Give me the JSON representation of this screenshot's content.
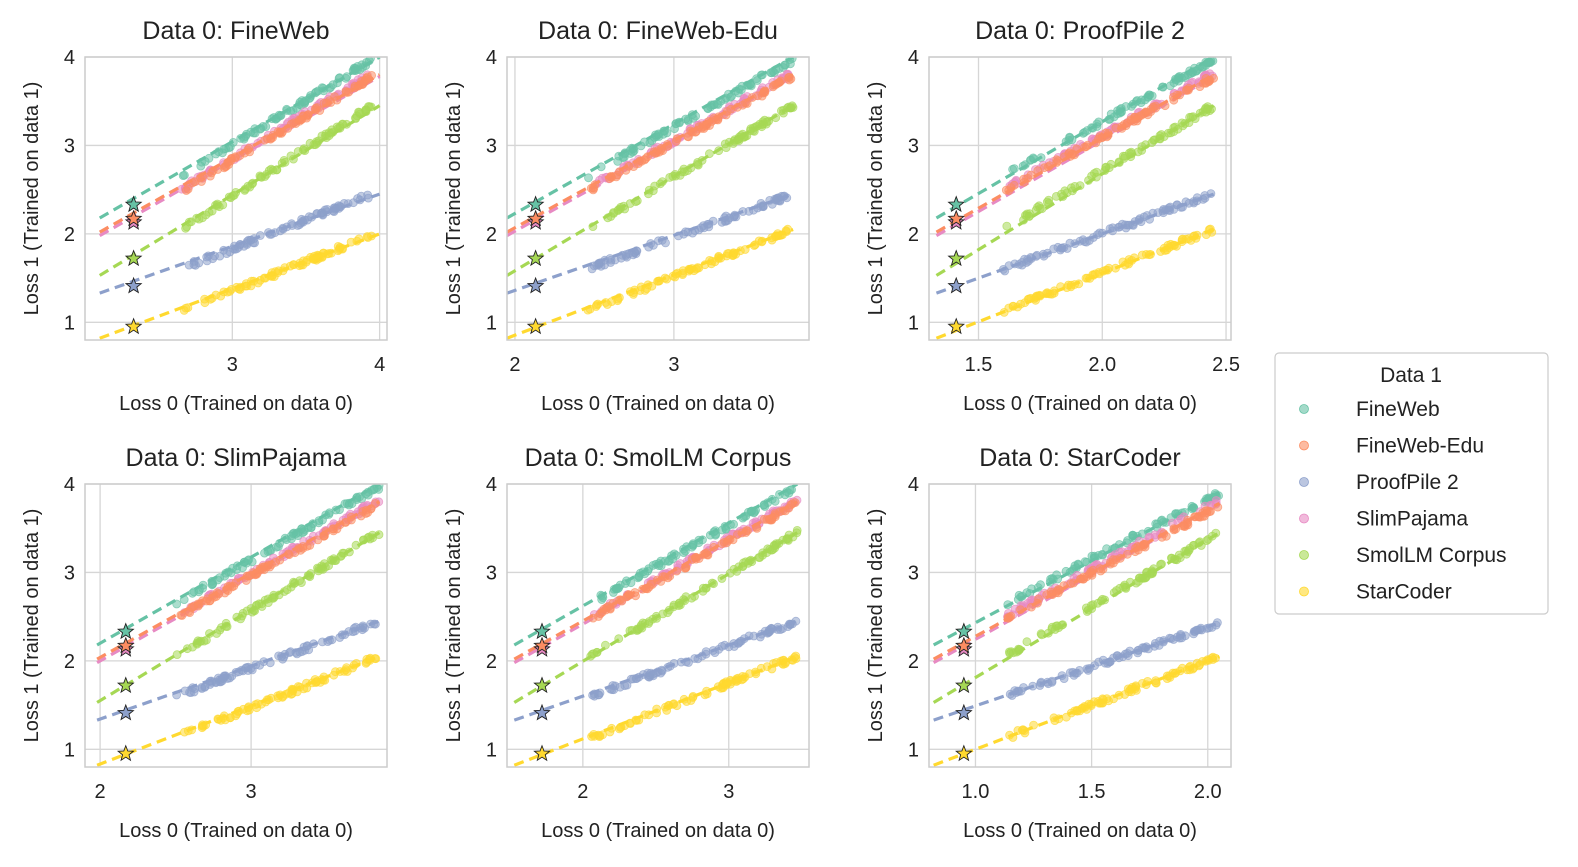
{
  "figure": {
    "legend_title": "Data 1"
  },
  "colors": {
    "FineWeb": "#66c2a5",
    "FineWeb-Edu": "#fc8d62",
    "ProofPile 2": "#8da0cb",
    "SlimPajama": "#e78ac3",
    "SmolLM Corpus": "#a6d854",
    "StarCoder": "#ffd92f"
  },
  "chart_data": [
    {
      "type": "scatter",
      "title": "Data 0: FineWeb",
      "xlabel": "Loss 0 (Trained on data 0)",
      "ylabel": "Loss 1 (Trained on data 1)",
      "xlim": [
        2.0,
        4.05
      ],
      "ylim": [
        0.8,
        4.0
      ],
      "xticks": [
        3,
        4
      ],
      "yticks": [
        1,
        2,
        3,
        4
      ],
      "line_x": [
        2.1,
        4.0
      ],
      "scatter_x": [
        2.65,
        3.95
      ],
      "star_x": 2.33,
      "series": [
        {
          "name": "FineWeb",
          "line_y": [
            2.18,
            4.0
          ],
          "scatter_y": [
            2.65,
            3.97
          ],
          "star_y": 2.33
        },
        {
          "name": "FineWeb-Edu",
          "line_y": [
            2.02,
            3.8
          ],
          "scatter_y": [
            2.48,
            3.78
          ],
          "star_y": 2.17
        },
        {
          "name": "ProofPile 2",
          "line_y": [
            1.33,
            2.45
          ],
          "scatter_y": [
            1.6,
            2.45
          ],
          "star_y": 1.41
        },
        {
          "name": "SlimPajama",
          "line_y": [
            1.98,
            3.78
          ],
          "scatter_y": [
            2.5,
            3.82
          ],
          "star_y": 2.13
        },
        {
          "name": "SmolLM Corpus",
          "line_y": [
            1.53,
            3.45
          ],
          "scatter_y": [
            2.05,
            3.45
          ],
          "star_y": 1.72
        },
        {
          "name": "StarCoder",
          "line_y": [
            0.82,
            2.0
          ],
          "scatter_y": [
            1.13,
            1.98
          ],
          "star_y": 0.95
        }
      ]
    },
    {
      "type": "scatter",
      "title": "Data 0: FineWeb-Edu",
      "xlabel": "Loss 0 (Trained on data 0)",
      "ylabel": "Loss 1 (Trained on data 1)",
      "xlim": [
        1.95,
        3.85
      ],
      "ylim": [
        0.8,
        4.0
      ],
      "xticks": [
        2,
        3
      ],
      "yticks": [
        1,
        2,
        3,
        4
      ],
      "line_x": [
        1.95,
        3.75
      ],
      "scatter_x": [
        2.45,
        3.75
      ],
      "star_x": 2.13,
      "series": [
        {
          "name": "FineWeb",
          "line_y": [
            2.18,
            4.0
          ],
          "scatter_y": [
            2.65,
            3.97
          ],
          "star_y": 2.33
        },
        {
          "name": "FineWeb-Edu",
          "line_y": [
            2.02,
            3.8
          ],
          "scatter_y": [
            2.48,
            3.78
          ],
          "star_y": 2.17
        },
        {
          "name": "ProofPile 2",
          "line_y": [
            1.33,
            2.45
          ],
          "scatter_y": [
            1.6,
            2.45
          ],
          "star_y": 1.41
        },
        {
          "name": "SlimPajama",
          "line_y": [
            1.98,
            3.78
          ],
          "scatter_y": [
            2.5,
            3.82
          ],
          "star_y": 2.13
        },
        {
          "name": "SmolLM Corpus",
          "line_y": [
            1.53,
            3.45
          ],
          "scatter_y": [
            2.05,
            3.45
          ],
          "star_y": 1.72
        },
        {
          "name": "StarCoder",
          "line_y": [
            0.82,
            2.05
          ],
          "scatter_y": [
            1.13,
            2.05
          ],
          "star_y": 0.95
        }
      ]
    },
    {
      "type": "scatter",
      "title": "Data 0: ProofPile 2",
      "xlabel": "Loss 0 (Trained on data 0)",
      "ylabel": "Loss 1 (Trained on data 1)",
      "xlim": [
        1.3,
        2.52
      ],
      "ylim": [
        0.8,
        4.0
      ],
      "xticks": [
        1.5,
        2.0,
        2.5
      ],
      "yticks": [
        1,
        2,
        3,
        4
      ],
      "line_x": [
        1.33,
        2.45
      ],
      "scatter_x": [
        1.6,
        2.45
      ],
      "star_x": 1.41,
      "series": [
        {
          "name": "FineWeb",
          "line_y": [
            2.18,
            4.0
          ],
          "scatter_y": [
            2.65,
            3.97
          ],
          "star_y": 2.33
        },
        {
          "name": "FineWeb-Edu",
          "line_y": [
            2.02,
            3.8
          ],
          "scatter_y": [
            2.48,
            3.78
          ],
          "star_y": 2.17
        },
        {
          "name": "ProofPile 2",
          "line_y": [
            1.33,
            2.45
          ],
          "scatter_y": [
            1.6,
            2.45
          ],
          "star_y": 1.41
        },
        {
          "name": "SlimPajama",
          "line_y": [
            1.98,
            3.78
          ],
          "scatter_y": [
            2.5,
            3.82
          ],
          "star_y": 2.13
        },
        {
          "name": "SmolLM Corpus",
          "line_y": [
            1.53,
            3.45
          ],
          "scatter_y": [
            2.05,
            3.45
          ],
          "star_y": 1.72
        },
        {
          "name": "StarCoder",
          "line_y": [
            0.82,
            2.05
          ],
          "scatter_y": [
            1.13,
            2.05
          ],
          "star_y": 0.95
        }
      ]
    },
    {
      "type": "scatter",
      "title": "Data 0: SlimPajama",
      "xlabel": "Loss 0 (Trained on data 0)",
      "ylabel": "Loss 1 (Trained on data 1)",
      "xlim": [
        1.9,
        3.9
      ],
      "ylim": [
        0.8,
        4.0
      ],
      "xticks": [
        2,
        3
      ],
      "yticks": [
        1,
        2,
        3,
        4
      ],
      "line_x": [
        1.98,
        3.85
      ],
      "scatter_x": [
        2.5,
        3.85
      ],
      "star_x": 2.17,
      "series": [
        {
          "name": "FineWeb",
          "line_y": [
            2.18,
            4.0
          ],
          "scatter_y": [
            2.65,
            3.97
          ],
          "star_y": 2.33
        },
        {
          "name": "FineWeb-Edu",
          "line_y": [
            2.02,
            3.8
          ],
          "scatter_y": [
            2.48,
            3.78
          ],
          "star_y": 2.17
        },
        {
          "name": "ProofPile 2",
          "line_y": [
            1.33,
            2.45
          ],
          "scatter_y": [
            1.6,
            2.45
          ],
          "star_y": 1.41
        },
        {
          "name": "SlimPajama",
          "line_y": [
            1.98,
            3.78
          ],
          "scatter_y": [
            2.5,
            3.82
          ],
          "star_y": 2.13
        },
        {
          "name": "SmolLM Corpus",
          "line_y": [
            1.53,
            3.45
          ],
          "scatter_y": [
            2.05,
            3.45
          ],
          "star_y": 1.72
        },
        {
          "name": "StarCoder",
          "line_y": [
            0.82,
            2.05
          ],
          "scatter_y": [
            1.13,
            2.05
          ],
          "star_y": 0.95
        }
      ]
    },
    {
      "type": "scatter",
      "title": "Data 0: SmolLM Corpus",
      "xlabel": "Loss 0 (Trained on data 0)",
      "ylabel": "Loss 1 (Trained on data 1)",
      "xlim": [
        1.48,
        3.55
      ],
      "ylim": [
        0.8,
        4.0
      ],
      "xticks": [
        2,
        3
      ],
      "yticks": [
        1,
        2,
        3,
        4
      ],
      "line_x": [
        1.53,
        3.47
      ],
      "scatter_x": [
        2.05,
        3.47
      ],
      "star_x": 1.72,
      "series": [
        {
          "name": "FineWeb",
          "line_y": [
            2.18,
            4.0
          ],
          "scatter_y": [
            2.65,
            3.97
          ],
          "star_y": 2.33
        },
        {
          "name": "FineWeb-Edu",
          "line_y": [
            2.02,
            3.8
          ],
          "scatter_y": [
            2.48,
            3.78
          ],
          "star_y": 2.17
        },
        {
          "name": "ProofPile 2",
          "line_y": [
            1.33,
            2.45
          ],
          "scatter_y": [
            1.6,
            2.45
          ],
          "star_y": 1.41
        },
        {
          "name": "SlimPajama",
          "line_y": [
            1.98,
            3.78
          ],
          "scatter_y": [
            2.5,
            3.82
          ],
          "star_y": 2.13
        },
        {
          "name": "SmolLM Corpus",
          "line_y": [
            1.53,
            3.45
          ],
          "scatter_y": [
            2.05,
            3.45
          ],
          "star_y": 1.72
        },
        {
          "name": "StarCoder",
          "line_y": [
            0.82,
            2.05
          ],
          "scatter_y": [
            1.13,
            2.05
          ],
          "star_y": 0.95
        }
      ]
    },
    {
      "type": "scatter",
      "title": "Data 0: StarCoder",
      "xlabel": "Loss 0 (Trained on data 0)",
      "ylabel": "Loss 1 (Trained on data 1)",
      "xlim": [
        0.8,
        2.1
      ],
      "ylim": [
        0.8,
        4.0
      ],
      "xticks": [
        1.0,
        1.5,
        2.0
      ],
      "yticks": [
        1,
        2,
        3,
        4
      ],
      "line_x": [
        0.82,
        2.05
      ],
      "scatter_x": [
        1.13,
        2.05
      ],
      "star_x": 0.95,
      "series": [
        {
          "name": "FineWeb",
          "line_y": [
            2.18,
            3.9
          ],
          "scatter_y": [
            2.65,
            3.9
          ],
          "star_y": 2.33
        },
        {
          "name": "FineWeb-Edu",
          "line_y": [
            2.02,
            3.78
          ],
          "scatter_y": [
            2.48,
            3.75
          ],
          "star_y": 2.17
        },
        {
          "name": "ProofPile 2",
          "line_y": [
            1.33,
            2.43
          ],
          "scatter_y": [
            1.6,
            2.43
          ],
          "star_y": 1.41
        },
        {
          "name": "SlimPajama",
          "line_y": [
            1.98,
            3.78
          ],
          "scatter_y": [
            2.5,
            3.82
          ],
          "star_y": 2.13
        },
        {
          "name": "SmolLM Corpus",
          "line_y": [
            1.53,
            3.45
          ],
          "scatter_y": [
            2.05,
            3.45
          ],
          "star_y": 1.72
        },
        {
          "name": "StarCoder",
          "line_y": [
            0.82,
            2.05
          ],
          "scatter_y": [
            1.13,
            2.05
          ],
          "star_y": 0.95
        }
      ]
    }
  ]
}
